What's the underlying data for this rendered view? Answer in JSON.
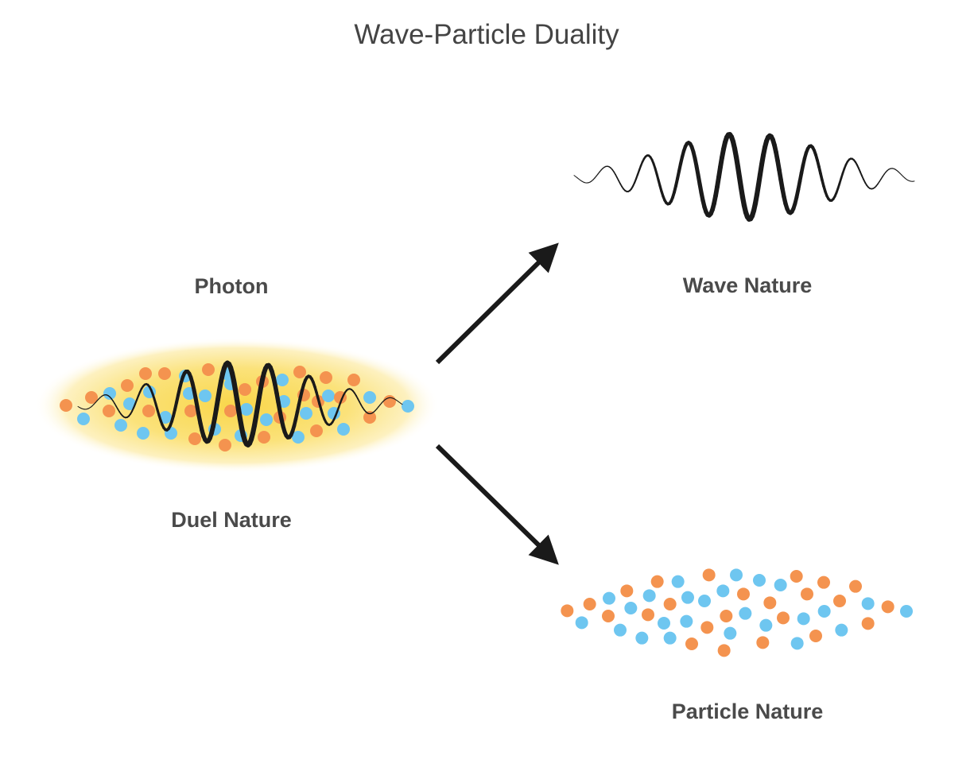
{
  "title": "Wave-Particle Duality",
  "labels": {
    "photon": "Photon",
    "dual": "Duel Nature",
    "wave": "Wave Nature",
    "particle": "Particle Nature"
  },
  "colors": {
    "text": "#444444",
    "wave": "#1a1a1a",
    "particle_orange": "#f4934f",
    "particle_blue": "#6ec6f0",
    "glow": "#f9d64a"
  }
}
